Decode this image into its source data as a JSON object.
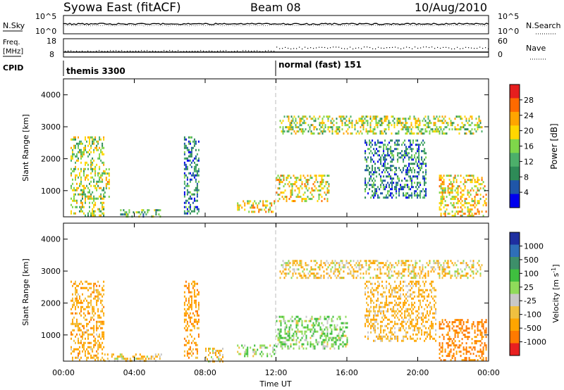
{
  "header": {
    "station": "Syowa East (fitACF)",
    "beam": "Beam 08",
    "date": "10/Aug/2010"
  },
  "panels": {
    "nsky_label": "N.Sky",
    "nsky_ticks": [
      "10^5",
      "10^0"
    ],
    "nsearch_label": "N.Search",
    "nsearch_ticks": [
      "10^5",
      "10^0"
    ],
    "freq_label": "Freq.",
    "freq_unit": "[MHz]",
    "freq_ticks": [
      "18",
      "8"
    ],
    "nave_label": "Nave",
    "nave_ticks": [
      "60",
      "0"
    ],
    "cpid_label": "CPID",
    "cpid_modes": [
      "themis 3300",
      "normal (fast) 151"
    ]
  },
  "axes": {
    "ylabel": "Slant Range [km]",
    "yticks": [
      "4000",
      "3000",
      "2000",
      "1000"
    ],
    "xticks": [
      "00:00",
      "04:00",
      "08:00",
      "12:00",
      "16:00",
      "20:00",
      "00:00"
    ],
    "xlabel": "Time UT"
  },
  "colorbars": {
    "power": {
      "label": "Power [dB]",
      "ticks": [
        "28",
        "24",
        "20",
        "16",
        "12",
        "8",
        "4"
      ],
      "colors": [
        "#e61e1e",
        "#ff6a00",
        "#ffa500",
        "#ffd700",
        "#7fd64a",
        "#4caf6a",
        "#2e8b57",
        "#1f56a8",
        "#0000ee"
      ]
    },
    "velocity": {
      "label": "Velocity [m s",
      "label_sup": "-1",
      "label_end": "]",
      "ticks": [
        "1000",
        "500",
        "100",
        "25",
        "-25",
        "-100",
        "-500",
        "-1000"
      ],
      "colors": [
        "#1e2fa0",
        "#2f6fb8",
        "#3d8f6a",
        "#3fbf3f",
        "#8fdb5a",
        "#c8c8c8",
        "#f0c040",
        "#ffa500",
        "#ff7a00",
        "#e82020"
      ]
    }
  },
  "chart_data": [
    {
      "type": "heatmap",
      "name": "power",
      "ylim": [
        180,
        4500
      ],
      "xlim": [
        0,
        24
      ],
      "regions": [
        {
          "t0": 0.4,
          "t1": 2.3,
          "r0": 200,
          "r1": 2700,
          "value": 18
        },
        {
          "t0": 2.3,
          "t1": 2.6,
          "r0": 800,
          "r1": 1700,
          "value": 20
        },
        {
          "t0": 3.2,
          "t1": 5.5,
          "r0": 200,
          "r1": 420,
          "value": 14
        },
        {
          "t0": 6.8,
          "t1": 7.6,
          "r0": 300,
          "r1": 2700,
          "value": 10
        },
        {
          "t0": 9.8,
          "t1": 11.9,
          "r0": 350,
          "r1": 700,
          "value": 22
        },
        {
          "t0": 12.0,
          "t1": 15.0,
          "r0": 700,
          "r1": 1500,
          "value": 20
        },
        {
          "t0": 12.2,
          "t1": 23.6,
          "r0": 2800,
          "r1": 3350,
          "value": 18
        },
        {
          "t0": 17.0,
          "t1": 20.5,
          "r0": 800,
          "r1": 2600,
          "value": 10
        },
        {
          "t0": 21.2,
          "t1": 23.9,
          "r0": 200,
          "r1": 1500,
          "value": 22
        }
      ]
    },
    {
      "type": "heatmap",
      "name": "velocity",
      "ylim": [
        180,
        4500
      ],
      "xlim": [
        0,
        24
      ],
      "regions": [
        {
          "t0": 0.4,
          "t1": 2.3,
          "r0": 200,
          "r1": 2700,
          "value": -150
        },
        {
          "t0": 2.3,
          "t1": 5.5,
          "r0": 200,
          "r1": 420,
          "value": -80
        },
        {
          "t0": 6.8,
          "t1": 7.6,
          "r0": 300,
          "r1": 2700,
          "value": -200
        },
        {
          "t0": 8.0,
          "t1": 9.0,
          "r0": 200,
          "r1": 600,
          "value": -80
        },
        {
          "t0": 9.8,
          "t1": 11.9,
          "r0": 350,
          "r1": 700,
          "value": 50
        },
        {
          "t0": 12.0,
          "t1": 16.0,
          "r0": 600,
          "r1": 1600,
          "value": 80
        },
        {
          "t0": 12.2,
          "t1": 23.6,
          "r0": 2800,
          "r1": 3350,
          "value": -60
        },
        {
          "t0": 17.0,
          "t1": 21.0,
          "r0": 800,
          "r1": 2700,
          "value": -120
        },
        {
          "t0": 21.2,
          "t1": 23.9,
          "r0": 200,
          "r1": 1500,
          "value": -300
        }
      ]
    }
  ]
}
